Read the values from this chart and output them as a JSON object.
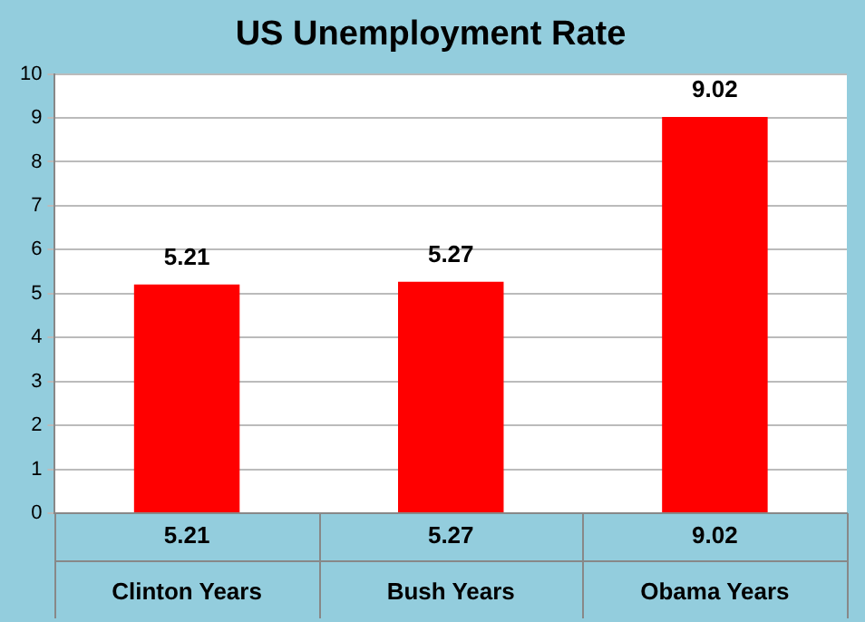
{
  "chart_data": {
    "type": "bar",
    "title": "US Unemployment Rate",
    "categories": [
      "Clinton Years",
      "Bush Years",
      "Obama Years"
    ],
    "values": [
      5.21,
      5.27,
      9.02
    ],
    "data_labels": true,
    "color": "#ff0000",
    "ylim": [
      0,
      10
    ],
    "yticks": [
      0,
      1,
      2,
      3,
      4,
      5,
      6,
      7,
      8,
      9,
      10
    ],
    "grid": "y",
    "annotations": [
      "5.21",
      "5.27",
      "9.02"
    ]
  }
}
